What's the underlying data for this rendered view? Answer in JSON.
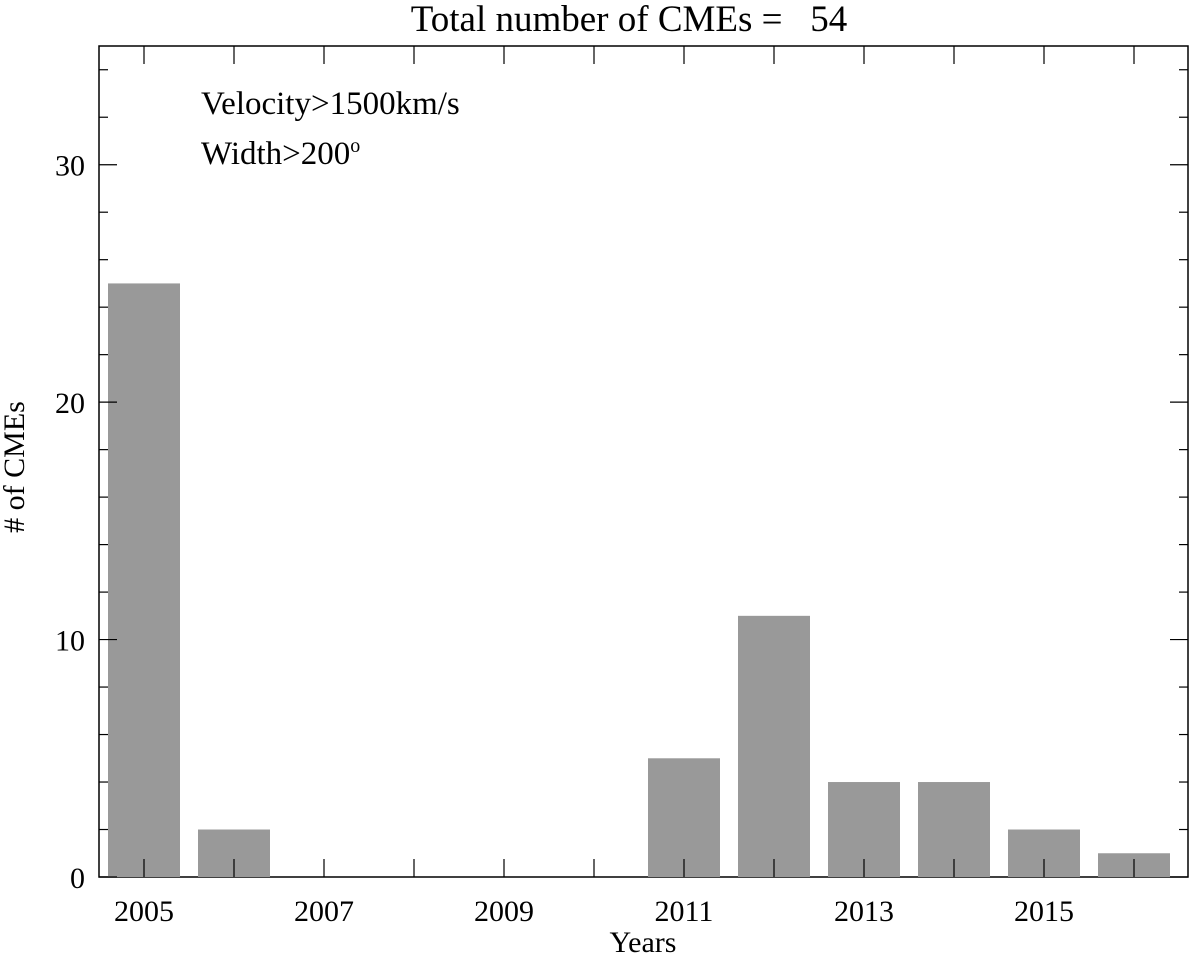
{
  "chart_data": {
    "type": "bar",
    "title_prefix": "Total number of CMEs =",
    "title_value": "54",
    "xlabel": "Years",
    "ylabel": "# of CMEs",
    "annotations": {
      "velocity": "Velocity>1500km/s",
      "width_text": "Width>200",
      "width_sup": "o"
    },
    "categories": [
      2005,
      2006,
      2007,
      2008,
      2009,
      2010,
      2011,
      2012,
      2013,
      2014,
      2015,
      2016
    ],
    "values": [
      25,
      2,
      0,
      0,
      0,
      0,
      5,
      11,
      4,
      4,
      2,
      1
    ],
    "xlim": [
      2004.5,
      2016.6
    ],
    "ylim": [
      0,
      35
    ],
    "x_ticks": [
      2005,
      2007,
      2009,
      2011,
      2013,
      2015
    ],
    "y_ticks": [
      0,
      10,
      20,
      30
    ],
    "bar_color": "#999999"
  }
}
